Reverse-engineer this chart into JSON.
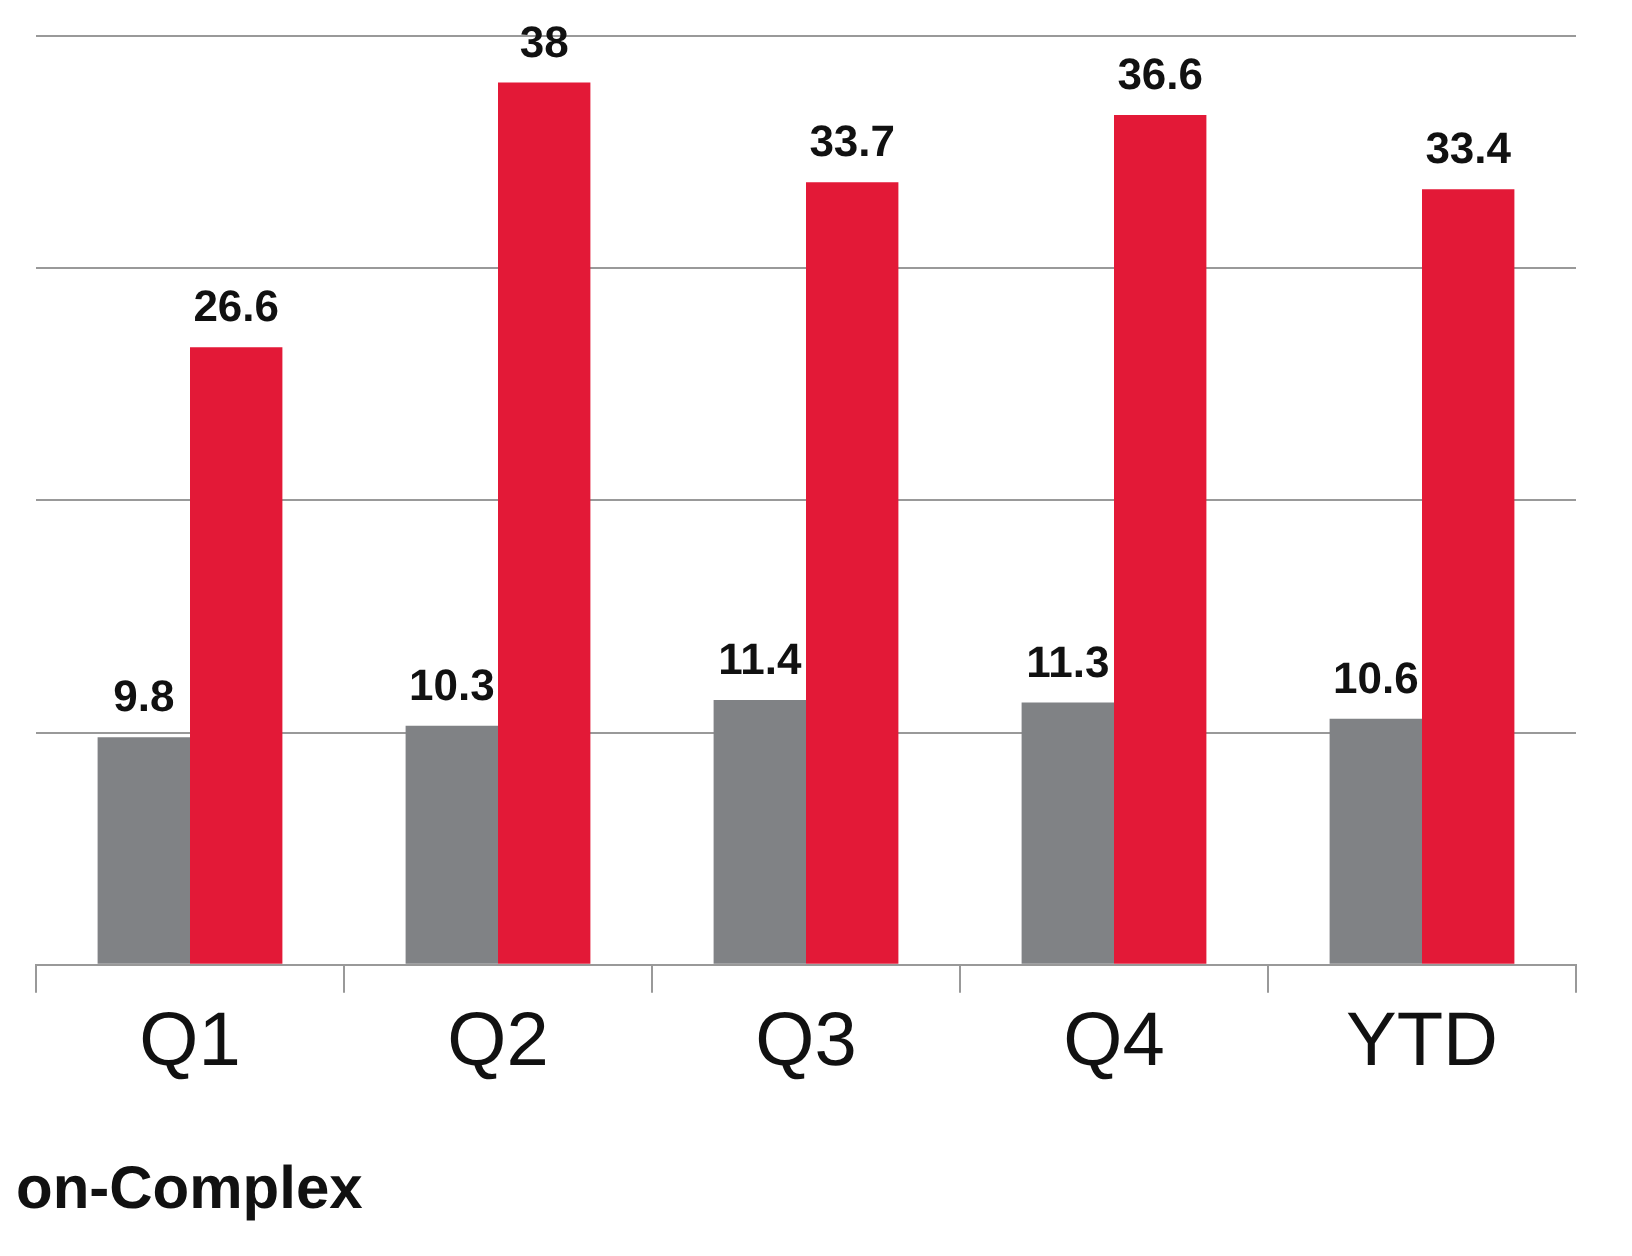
{
  "chart_data": {
    "type": "bar",
    "categories": [
      "Q1",
      "Q2",
      "Q3",
      "Q4",
      "YTD"
    ],
    "series": [
      {
        "color": "#808285",
        "values": [
          9.8,
          10.3,
          11.4,
          11.3,
          10.6
        ]
      },
      {
        "color": "#e31937",
        "values": [
          26.6,
          38,
          33.7,
          36.6,
          33.4
        ]
      }
    ],
    "ylim": [
      0,
      40
    ],
    "yticks": [
      {
        "value": 0,
        "label": null
      },
      {
        "value": 10,
        "label": null
      },
      {
        "value": 20,
        "label": null
      },
      {
        "value": 30,
        "label": null
      },
      {
        "value": 40,
        "label": null
      }
    ],
    "tick_labels": "x",
    "grid": "y",
    "data_labels": true,
    "legend": false,
    "annotations": [
      "on-Complex"
    ]
  }
}
